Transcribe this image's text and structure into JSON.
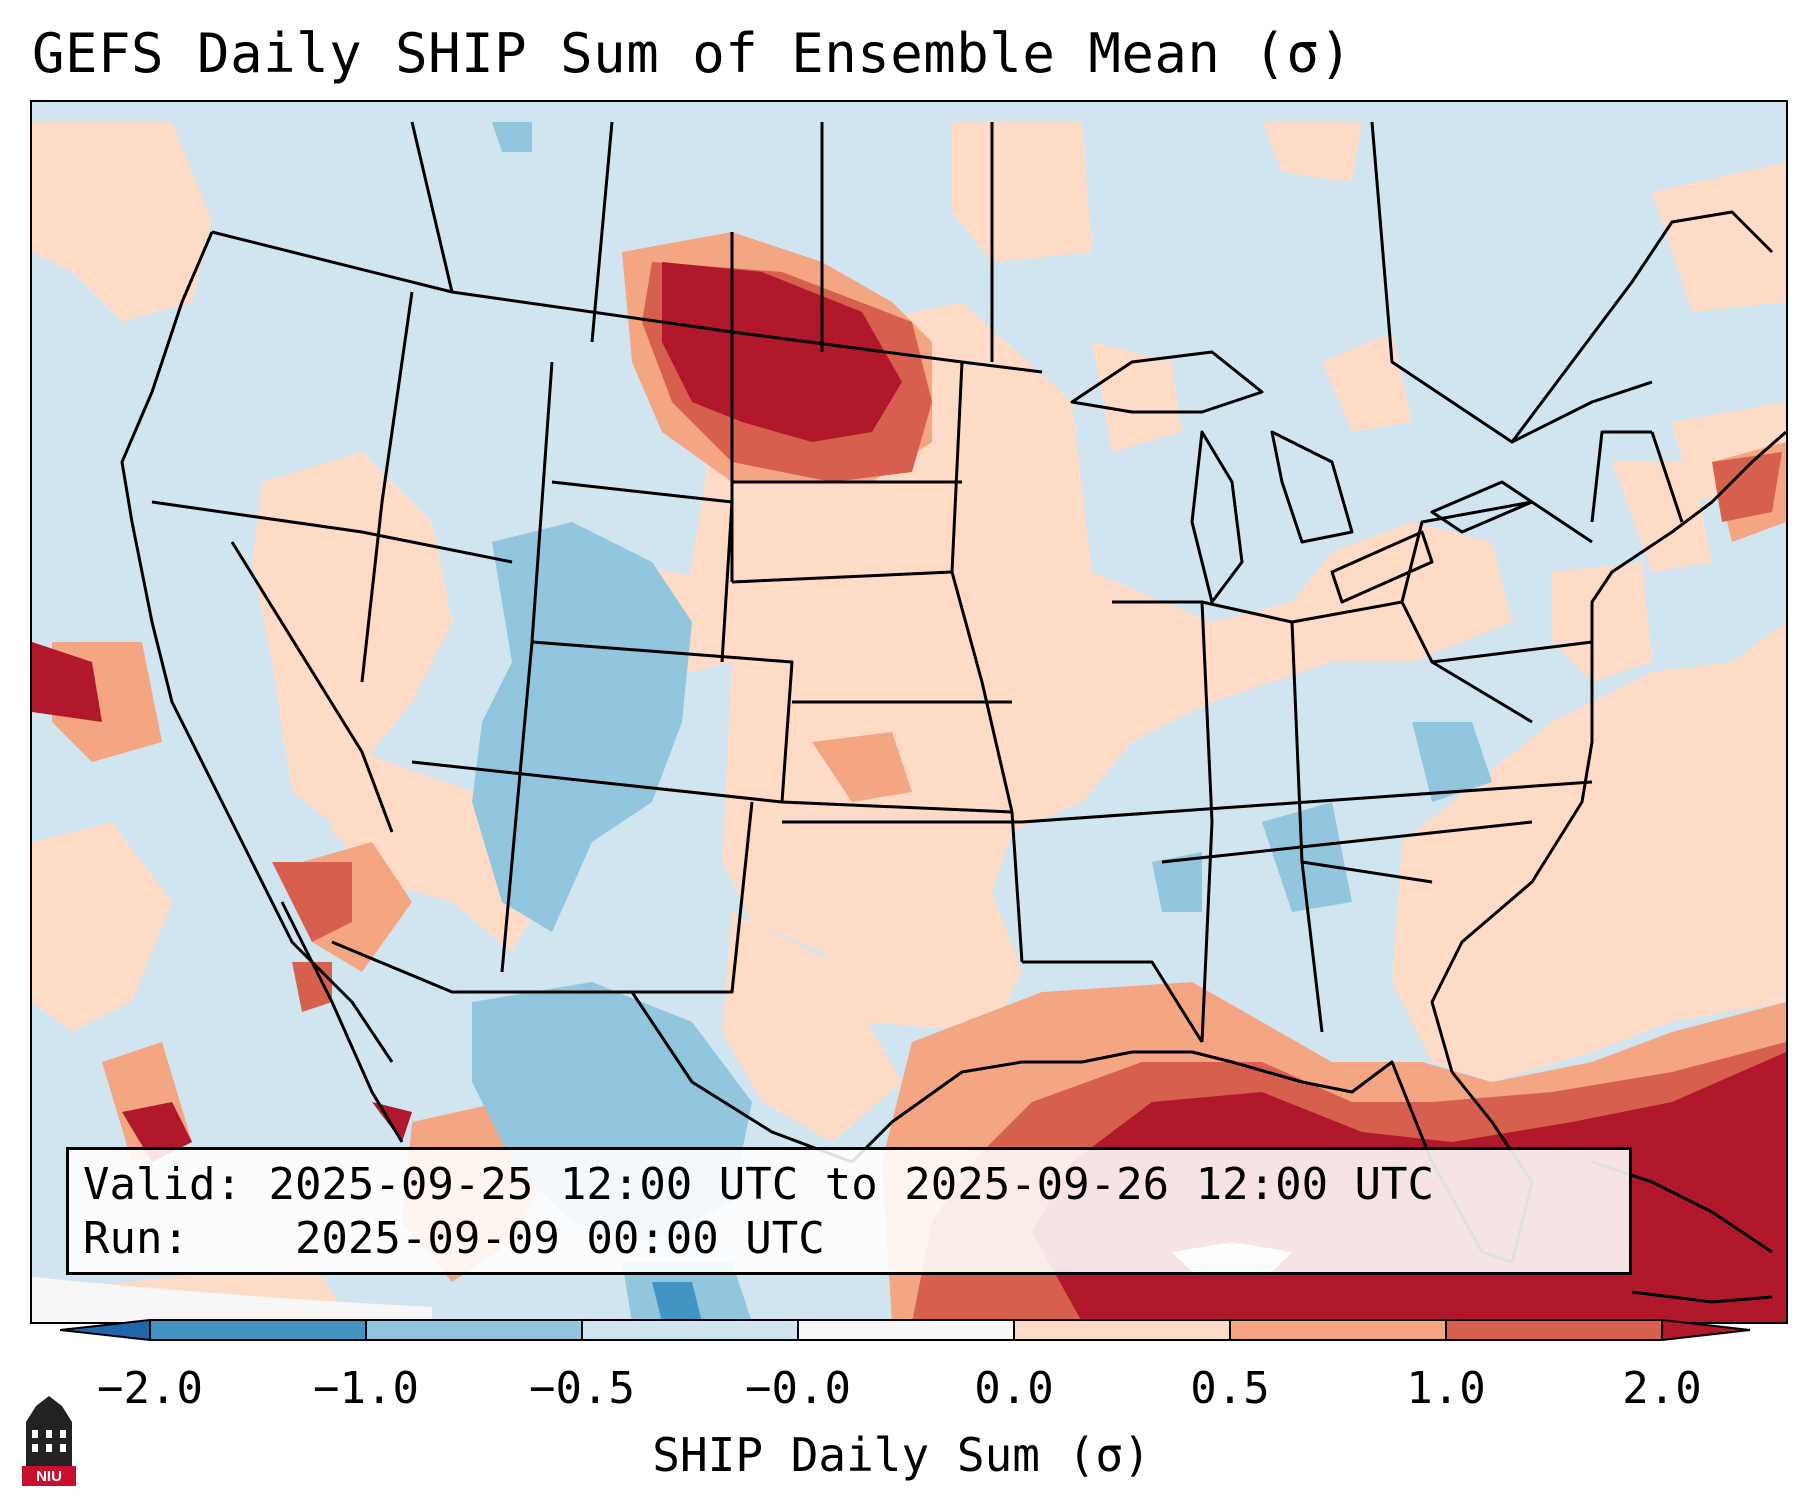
{
  "title": "GEFS Daily SHIP Sum of Ensemble Mean (σ)",
  "info": {
    "valid_label": "Valid:",
    "valid_value": "2025-09-25 12:00 UTC to 2025-09-26 12:00 UTC",
    "run_label": "Run:",
    "run_value": "2025-09-09 00:00 UTC"
  },
  "colorbar": {
    "label": "SHIP Daily Sum (σ)",
    "ticks": [
      "−2.0",
      "−1.0",
      "−0.5",
      "−0.0",
      "0.0",
      "0.5",
      "1.0",
      "2.0"
    ],
    "colors": {
      "below": "#2166ac",
      "b1": "#4393c3",
      "b2": "#92c5de",
      "b3": "#d1e5f0",
      "b4": "#f7f7f7",
      "b5": "#fddbc7",
      "b6": "#f4a582",
      "b7": "#d6604d",
      "above": "#b2182b"
    }
  },
  "logo": {
    "text": "NIU",
    "color": "#c8102e"
  }
}
